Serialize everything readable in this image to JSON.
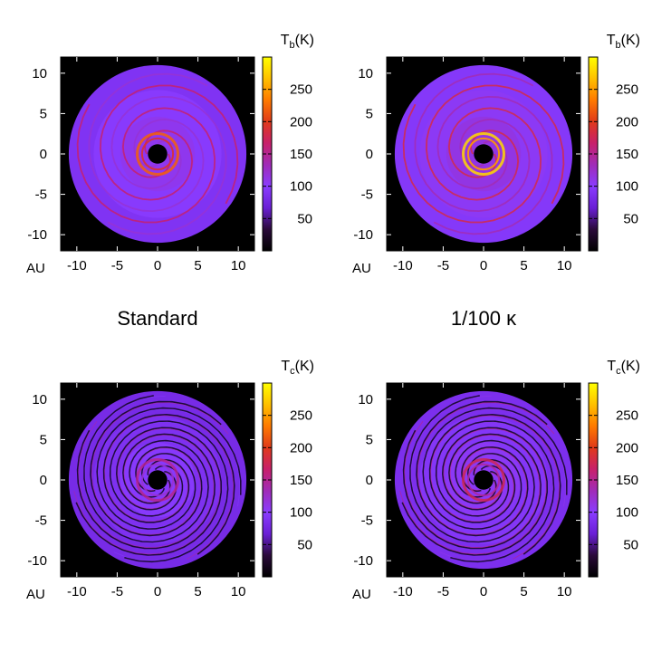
{
  "figure": {
    "row_labels": [
      "Standard",
      "1/100 κ"
    ],
    "axis_unit_label": "AU"
  },
  "colormap": {
    "stops": [
      "#000000",
      "#2a0a3a",
      "#6a1fd6",
      "#8a3cff",
      "#a02cb8",
      "#c8206a",
      "#e03a1a",
      "#ff7a00",
      "#ffc000",
      "#ffff00"
    ]
  },
  "chart_data": [
    {
      "type": "heatmap",
      "panel": "top-left",
      "title": "Standard",
      "quantity": "T_b",
      "colorbar_label": {
        "base": "T",
        "sub": "b",
        "suffix": "(K)"
      },
      "xlabel": "AU",
      "ylabel": "",
      "xlim": [
        -12,
        12
      ],
      "ylim": [
        -12,
        12
      ],
      "x_ticks": [
        -10,
        -5,
        0,
        5,
        10
      ],
      "y_ticks": [
        10,
        5,
        0,
        -5,
        -10
      ],
      "colorbar_ticks": [
        250,
        200,
        150,
        100,
        50
      ],
      "colorbar_range": [
        0,
        300
      ],
      "features": {
        "disk_radius_au": 11,
        "inner_hole_radius_au": 1.2,
        "peak_temperature_k": 220,
        "spiral_temperature_k": 165,
        "background_temperature_k": 90
      }
    },
    {
      "type": "heatmap",
      "panel": "top-right",
      "title": "1/100 κ",
      "quantity": "T_b",
      "colorbar_label": {
        "base": "T",
        "sub": "b",
        "suffix": "(K)"
      },
      "xlabel": "AU",
      "ylabel": "",
      "xlim": [
        -12,
        12
      ],
      "ylim": [
        -12,
        12
      ],
      "x_ticks": [
        -10,
        -5,
        0,
        5,
        10
      ],
      "y_ticks": [
        10,
        5,
        0,
        -5,
        -10
      ],
      "colorbar_ticks": [
        250,
        200,
        150,
        100,
        50
      ],
      "colorbar_range": [
        0,
        300
      ],
      "features": {
        "disk_radius_au": 11,
        "inner_hole_radius_au": 1.2,
        "peak_temperature_k": 280,
        "spiral_temperature_k": 180,
        "background_temperature_k": 95
      }
    },
    {
      "type": "heatmap",
      "panel": "bottom-left",
      "title": "Standard",
      "quantity": "T_c",
      "colorbar_label": {
        "base": "T",
        "sub": "c",
        "suffix": "(K)"
      },
      "xlabel": "AU",
      "ylabel": "",
      "xlim": [
        -12,
        12
      ],
      "ylim": [
        -12,
        12
      ],
      "x_ticks": [
        -10,
        -5,
        0,
        5,
        10
      ],
      "y_ticks": [
        10,
        5,
        0,
        -5,
        -10
      ],
      "colorbar_ticks": [
        250,
        200,
        150,
        100,
        50
      ],
      "colorbar_range": [
        0,
        300
      ],
      "features": {
        "disk_radius_au": 11,
        "inner_hole_radius_au": 1.2,
        "peak_temperature_k": 150,
        "spiral_temperature_k": 140,
        "background_temperature_k": 80
      }
    },
    {
      "type": "heatmap",
      "panel": "bottom-right",
      "title": "1/100 κ",
      "quantity": "T_c",
      "colorbar_label": {
        "base": "T",
        "sub": "c",
        "suffix": "(K)"
      },
      "xlabel": "AU",
      "ylabel": "",
      "xlim": [
        -12,
        12
      ],
      "ylim": [
        -12,
        12
      ],
      "x_ticks": [
        -10,
        -5,
        0,
        5,
        10
      ],
      "y_ticks": [
        10,
        5,
        0,
        -5,
        -10
      ],
      "colorbar_ticks": [
        250,
        200,
        150,
        100,
        50
      ],
      "colorbar_range": [
        0,
        300
      ],
      "features": {
        "disk_radius_au": 11,
        "inner_hole_radius_au": 1.2,
        "peak_temperature_k": 175,
        "spiral_temperature_k": 155,
        "background_temperature_k": 85
      }
    }
  ]
}
